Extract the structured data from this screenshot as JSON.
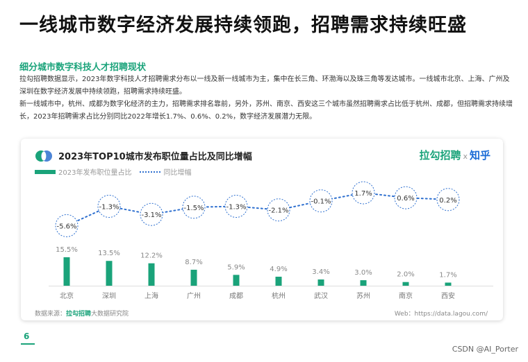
{
  "page": {
    "title": "一线城市数字经济发展持续领跑，招聘需求持续旺盛",
    "section_title": "细分城市数字科技人才招聘现状",
    "paragraphs": [
      "拉勾招聘数据显示，2023年数字科技人才招聘需求分布以一线及新一线城市为主，集中在长三角、环渤海以及珠三角等发达城市。一线城市北京、上海、广州及深圳在数字经济发展中持续领跑，招聘需求持续旺盛。",
      "新一线城市中，杭州、成都为数字化经济的主力，招聘需求排名靠前，另外，苏州、南京、西安这三个城市虽然招聘需求占比低于杭州、成都，但招聘需求持续增长，2023年招聘需求占比分别同比2022年增长1.7%、0.6%、0.2%，数字经济发展潜力无限。"
    ],
    "page_number": "6",
    "watermark": "CSDN @AI_Porter"
  },
  "card": {
    "brand_lagou": "拉勾招聘",
    "brand_x": "x",
    "brand_zhihu": "知乎",
    "source_prefix": "数据来源：",
    "source_brand": "拉勾招聘",
    "source_suffix": "大数据研究院",
    "web": "Web：https://data.lagou.com/"
  },
  "colors": {
    "bar": "#1aa37a",
    "line": "#2d6fcf",
    "accent": "#1aa37a"
  },
  "chart_data": {
    "type": "bar",
    "title": "2023年TOP10城市发布职位量占比及同比增幅",
    "categories": [
      "北京",
      "深圳",
      "上海",
      "广州",
      "成都",
      "杭州",
      "武汉",
      "苏州",
      "南京",
      "西安"
    ],
    "series": [
      {
        "name": "2023年发布职位量占比",
        "type": "bar",
        "values": [
          15.5,
          13.5,
          12.2,
          8.7,
          5.9,
          4.9,
          3.4,
          3.0,
          2.0,
          1.7
        ],
        "labels": [
          "15.5%",
          "13.5%",
          "12.2%",
          "8.7%",
          "5.9%",
          "4.9%",
          "3.4%",
          "3.0%",
          "2.0%",
          "1.7%"
        ]
      },
      {
        "name": "同比增幅",
        "type": "line",
        "values": [
          -5.6,
          -1.3,
          -3.1,
          -1.5,
          -1.3,
          -2.1,
          -0.1,
          1.7,
          0.6,
          0.2
        ],
        "labels": [
          "-5.6%",
          "-1.3%",
          "-3.1%",
          "-1.5%",
          "-1.3%",
          "-2.1%",
          "-0.1%",
          "1.7%",
          "0.6%",
          "0.2%"
        ]
      }
    ],
    "legend_position": "top-left",
    "grid": false
  }
}
